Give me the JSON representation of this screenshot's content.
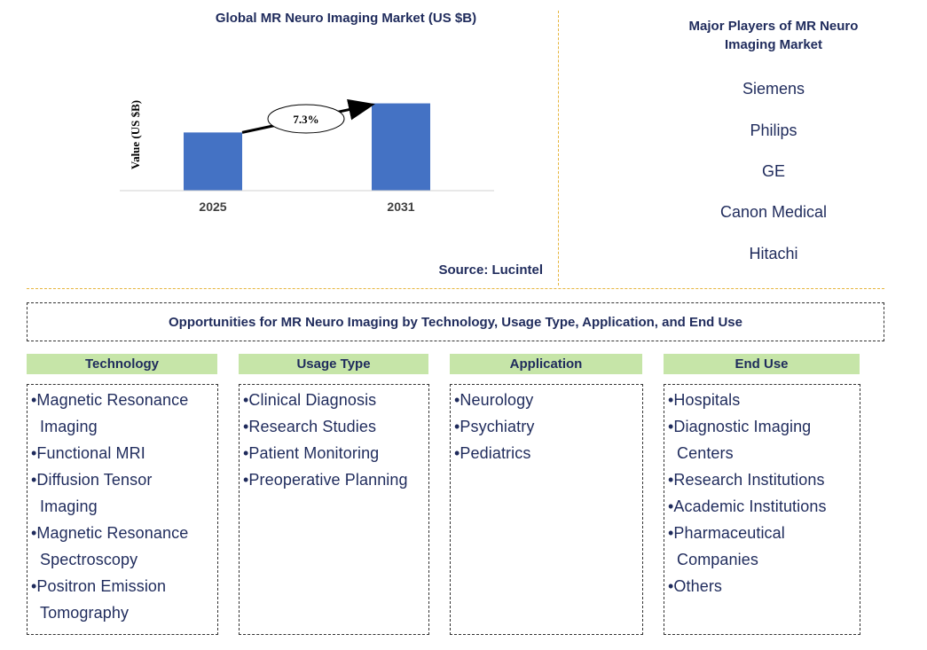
{
  "chart_data": {
    "type": "bar",
    "title": "Global MR Neuro Imaging Market (US $B)",
    "ylabel": "Value (US $B)",
    "xlabel": "",
    "categories": [
      "2025",
      "2031"
    ],
    "values": [
      1.0,
      1.5
    ],
    "ylim": [
      0,
      1.6
    ],
    "annotations": [
      {
        "text": "7.3%",
        "type": "cagr-arrow",
        "from": "2025",
        "to": "2031"
      }
    ],
    "colors": {
      "bar": "#4472c4"
    },
    "grid": false
  },
  "source": "Source: Lucintel",
  "players": {
    "title": "Major Players of MR Neuro Imaging Market",
    "items": [
      "Siemens",
      "Philips",
      "GE",
      "Canon Medical",
      "Hitachi"
    ]
  },
  "opportunities": {
    "title": "Opportunities for MR Neuro Imaging by Technology, Usage Type, Application, and End Use",
    "columns": [
      {
        "heading": "Technology",
        "items": [
          "Magnetic Resonance Imaging",
          "Functional MRI",
          "Diffusion Tensor Imaging",
          "Magnetic Resonance Spectroscopy",
          "Positron Emission Tomography"
        ]
      },
      {
        "heading": "Usage Type",
        "items": [
          "Clinical Diagnosis",
          "Research Studies",
          "Patient Monitoring",
          "Preoperative Planning"
        ]
      },
      {
        "heading": "Application",
        "items": [
          "Neurology",
          "Psychiatry",
          "Pediatrics"
        ]
      },
      {
        "heading": "End Use",
        "items": [
          "Hospitals",
          "Diagnostic Imaging Centers",
          "Research Institutions",
          "Academic Institutions",
          "Pharmaceutical Companies",
          "Others"
        ]
      }
    ]
  }
}
